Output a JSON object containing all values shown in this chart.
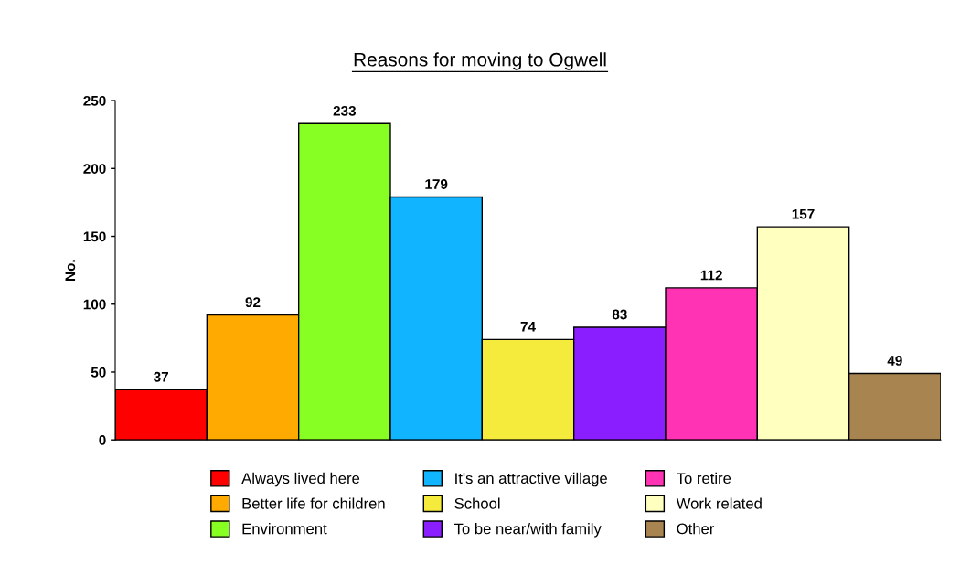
{
  "chart_data": {
    "type": "bar",
    "title": "Reasons for moving to Ogwell",
    "ylabel": "No.",
    "categories": [
      null,
      null,
      null,
      null,
      null,
      null,
      null,
      null,
      null
    ],
    "series": [
      {
        "name": "Always lived here",
        "color": "#ff0000",
        "values": [
          37,
          null,
          null,
          null,
          null,
          null,
          null,
          null,
          null
        ]
      },
      {
        "name": "Better life for children",
        "color": "#ffaa00",
        "values": [
          null,
          92,
          null,
          null,
          null,
          null,
          null,
          null,
          null
        ]
      },
      {
        "name": "Environment",
        "color": "#88ff22",
        "values": [
          null,
          null,
          233,
          null,
          null,
          null,
          null,
          null,
          null
        ]
      },
      {
        "name": "It's an attractive village",
        "color": "#11b4ff",
        "values": [
          null,
          null,
          null,
          179,
          null,
          null,
          null,
          null,
          null
        ]
      },
      {
        "name": "School",
        "color": "#f5eb3c",
        "values": [
          null,
          null,
          null,
          null,
          74,
          null,
          null,
          null,
          null
        ]
      },
      {
        "name": "To be near/with family",
        "color": "#8a1eff",
        "values": [
          null,
          null,
          null,
          null,
          null,
          83,
          null,
          null,
          null
        ]
      },
      {
        "name": "To retire",
        "color": "#ff33b4",
        "values": [
          null,
          null,
          null,
          null,
          null,
          null,
          112,
          null,
          null
        ]
      },
      {
        "name": "Work related",
        "color": "#ffffc0",
        "values": [
          null,
          null,
          null,
          null,
          null,
          null,
          null,
          157,
          null
        ]
      },
      {
        "name": "Other",
        "color": "#a88450",
        "values": [
          null,
          null,
          null,
          null,
          null,
          null,
          null,
          null,
          49
        ]
      }
    ],
    "ylim": [
      0,
      250
    ],
    "yticks": [
      0,
      50,
      100,
      150,
      200,
      250
    ],
    "data_labels": true,
    "grid": false,
    "legend": "bottom",
    "tick_labels": "y"
  }
}
